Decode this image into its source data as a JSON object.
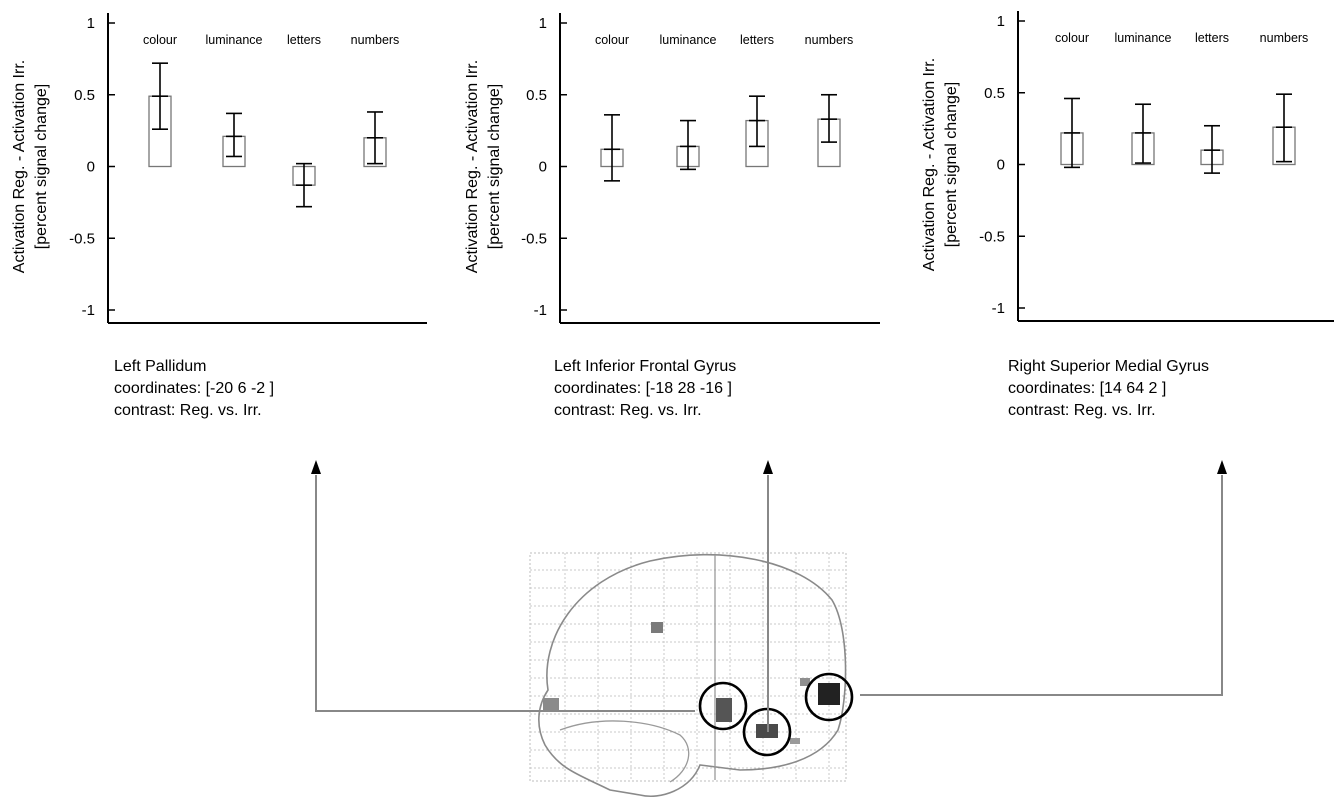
{
  "chart_data": [
    {
      "type": "bar",
      "ylabel": [
        "Activation Reg. - Activation Irr.",
        "[percent signal change]"
      ],
      "ylim": [
        -1,
        1
      ],
      "yticks": [
        "1",
        "0.5",
        "0",
        "-0.5",
        "-1"
      ],
      "categories": [
        "colour",
        "luminance",
        "letters",
        "numbers"
      ],
      "values": [
        0.49,
        0.21,
        -0.13,
        0.2
      ],
      "err_low": [
        0.26,
        0.07,
        -0.28,
        0.02
      ],
      "err_high": [
        0.72,
        0.37,
        0.02,
        0.38
      ],
      "caption": [
        "Left Pallidum",
        "coordinates: [-20 6 -2 ]",
        "contrast: Reg. vs. Irr."
      ]
    },
    {
      "type": "bar",
      "ylabel": [
        "Activation Reg. - Activation Irr.",
        "[percent signal change]"
      ],
      "ylim": [
        -1,
        1
      ],
      "yticks": [
        "1",
        "0.5",
        "0",
        "-0.5",
        "-1"
      ],
      "categories": [
        "colour",
        "luminance",
        "letters",
        "numbers"
      ],
      "values": [
        0.12,
        0.14,
        0.32,
        0.33
      ],
      "err_low": [
        -0.1,
        -0.02,
        0.14,
        0.17
      ],
      "err_high": [
        0.36,
        0.32,
        0.49,
        0.5
      ],
      "caption": [
        "Left Inferior Frontal Gyrus",
        "coordinates: [-18 28 -16 ]",
        "contrast: Reg. vs. Irr."
      ]
    },
    {
      "type": "bar",
      "ylabel": [
        "Activation Reg. - Activation Irr.",
        "[percent signal change]"
      ],
      "ylim": [
        -1,
        1
      ],
      "yticks": [
        "1",
        "0.5",
        "0",
        "-0.5",
        "-1"
      ],
      "categories": [
        "colour",
        "luminance",
        "letters",
        "numbers"
      ],
      "values": [
        0.22,
        0.22,
        0.1,
        0.26
      ],
      "err_low": [
        -0.02,
        0.01,
        -0.06,
        0.02
      ],
      "err_high": [
        0.46,
        0.42,
        0.27,
        0.49
      ],
      "caption": [
        "Right Superior Medial Gyrus",
        "coordinates: [14 64 2 ]",
        "contrast: Reg. vs. Irr."
      ]
    }
  ],
  "colors": {
    "axis": "#000000",
    "bar_edge": "#777777",
    "connector": "#888888",
    "circle": "#000000"
  }
}
